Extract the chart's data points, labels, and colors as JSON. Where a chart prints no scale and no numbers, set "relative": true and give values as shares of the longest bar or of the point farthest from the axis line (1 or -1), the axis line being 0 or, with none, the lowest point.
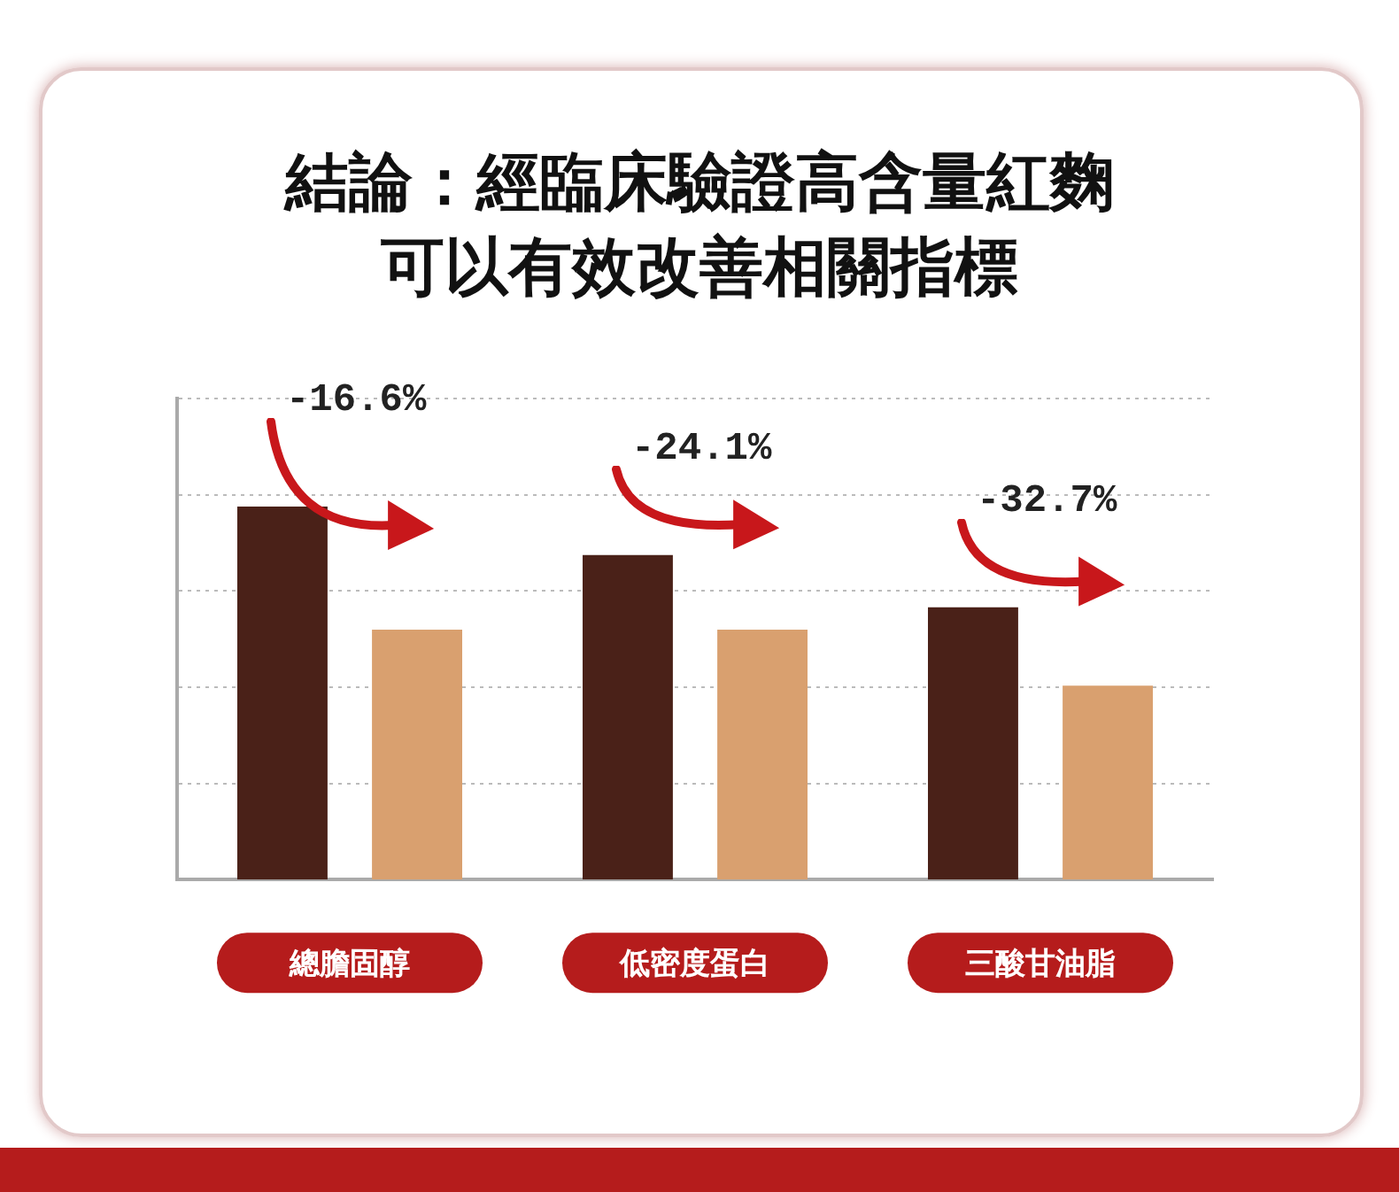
{
  "chart_data": {
    "type": "bar",
    "title": "結論：經臨床驗證高含量紅麴可以有效改善相關指標",
    "categories": [
      "總膽固醇",
      "低密度蛋白",
      "三酸甘油脂"
    ],
    "relative": true,
    "grid": "y",
    "series": [
      {
        "color": "#4a2118",
        "values": [
          1,
          0.87,
          0.73
        ]
      },
      {
        "color": "#d9a06f",
        "values": [
          0.67,
          0.67,
          0.52
        ]
      }
    ],
    "annotations": [
      "-16.6%",
      "-24.1%",
      "-32.7%"
    ]
  }
}
